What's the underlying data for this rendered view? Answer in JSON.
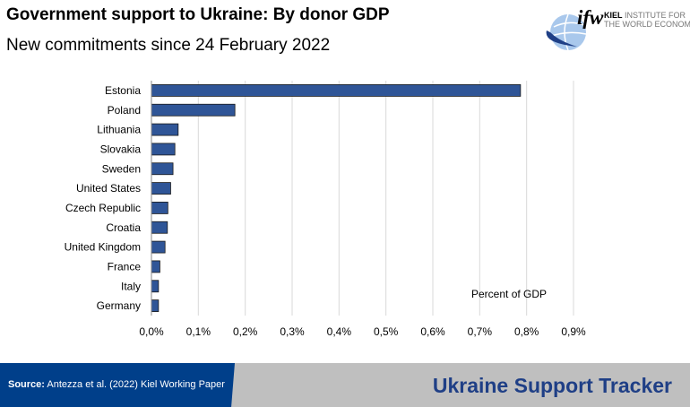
{
  "header": {
    "title": "Government support to Ukraine: By donor GDP",
    "subtitle": "New commitments since 24 February 2022"
  },
  "logo": {
    "mark": "ifw",
    "line1": "KIEL",
    "line1b": "INSTITUTE FOR",
    "line2": "THE WORLD ECONOMY"
  },
  "chart_data": {
    "type": "bar",
    "orientation": "horizontal",
    "categories": [
      "Estonia",
      "Poland",
      "Lithuania",
      "Slovakia",
      "Sweden",
      "United States",
      "Czech Republic",
      "Croatia",
      "United Kingdom",
      "France",
      "Italy",
      "Germany"
    ],
    "values": [
      0.787,
      0.178,
      0.057,
      0.05,
      0.046,
      0.041,
      0.035,
      0.034,
      0.029,
      0.018,
      0.015,
      0.015
    ],
    "unit": "%",
    "xlim": [
      0,
      0.9
    ],
    "xticks": [
      "0,0%",
      "0,1%",
      "0,2%",
      "0,3%",
      "0,4%",
      "0,5%",
      "0,6%",
      "0,7%",
      "0,8%",
      "0,9%"
    ],
    "annotation": "Percent of GDP",
    "grid": "vertical",
    "bar_color": "#2f5597"
  },
  "footer": {
    "source_label": "Source:",
    "source_text": " Antezza et al. (2022) Kiel Working Paper",
    "tracker": "Ukraine Support Tracker",
    "blue": "#003f8a",
    "gray": "#bfbfbf"
  }
}
